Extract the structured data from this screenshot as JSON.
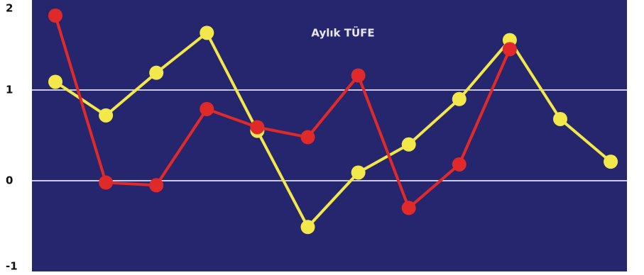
{
  "chart_data": {
    "type": "line",
    "title": "Aylık TÜFE",
    "categories": [
      null,
      null,
      null,
      null,
      null,
      null,
      null,
      null,
      null,
      null,
      null,
      null
    ],
    "series": [
      {
        "color": "#f2e84a",
        "values": [
          1.09,
          0.72,
          1.19,
          1.63,
          0.55,
          -0.51,
          0.09,
          0.4,
          0.9,
          1.55,
          0.68,
          0.21
        ]
      },
      {
        "color": "#e02a2a",
        "values": [
          1.82,
          -0.02,
          -0.05,
          0.79,
          0.59,
          0.48,
          1.16,
          -0.3,
          0.18,
          1.45,
          null,
          null
        ]
      }
    ],
    "ylim": [
      -1,
      2
    ],
    "yticks": [
      -1,
      0,
      1,
      2
    ],
    "grid_values": [
      0,
      1
    ],
    "background": "#25266e"
  }
}
